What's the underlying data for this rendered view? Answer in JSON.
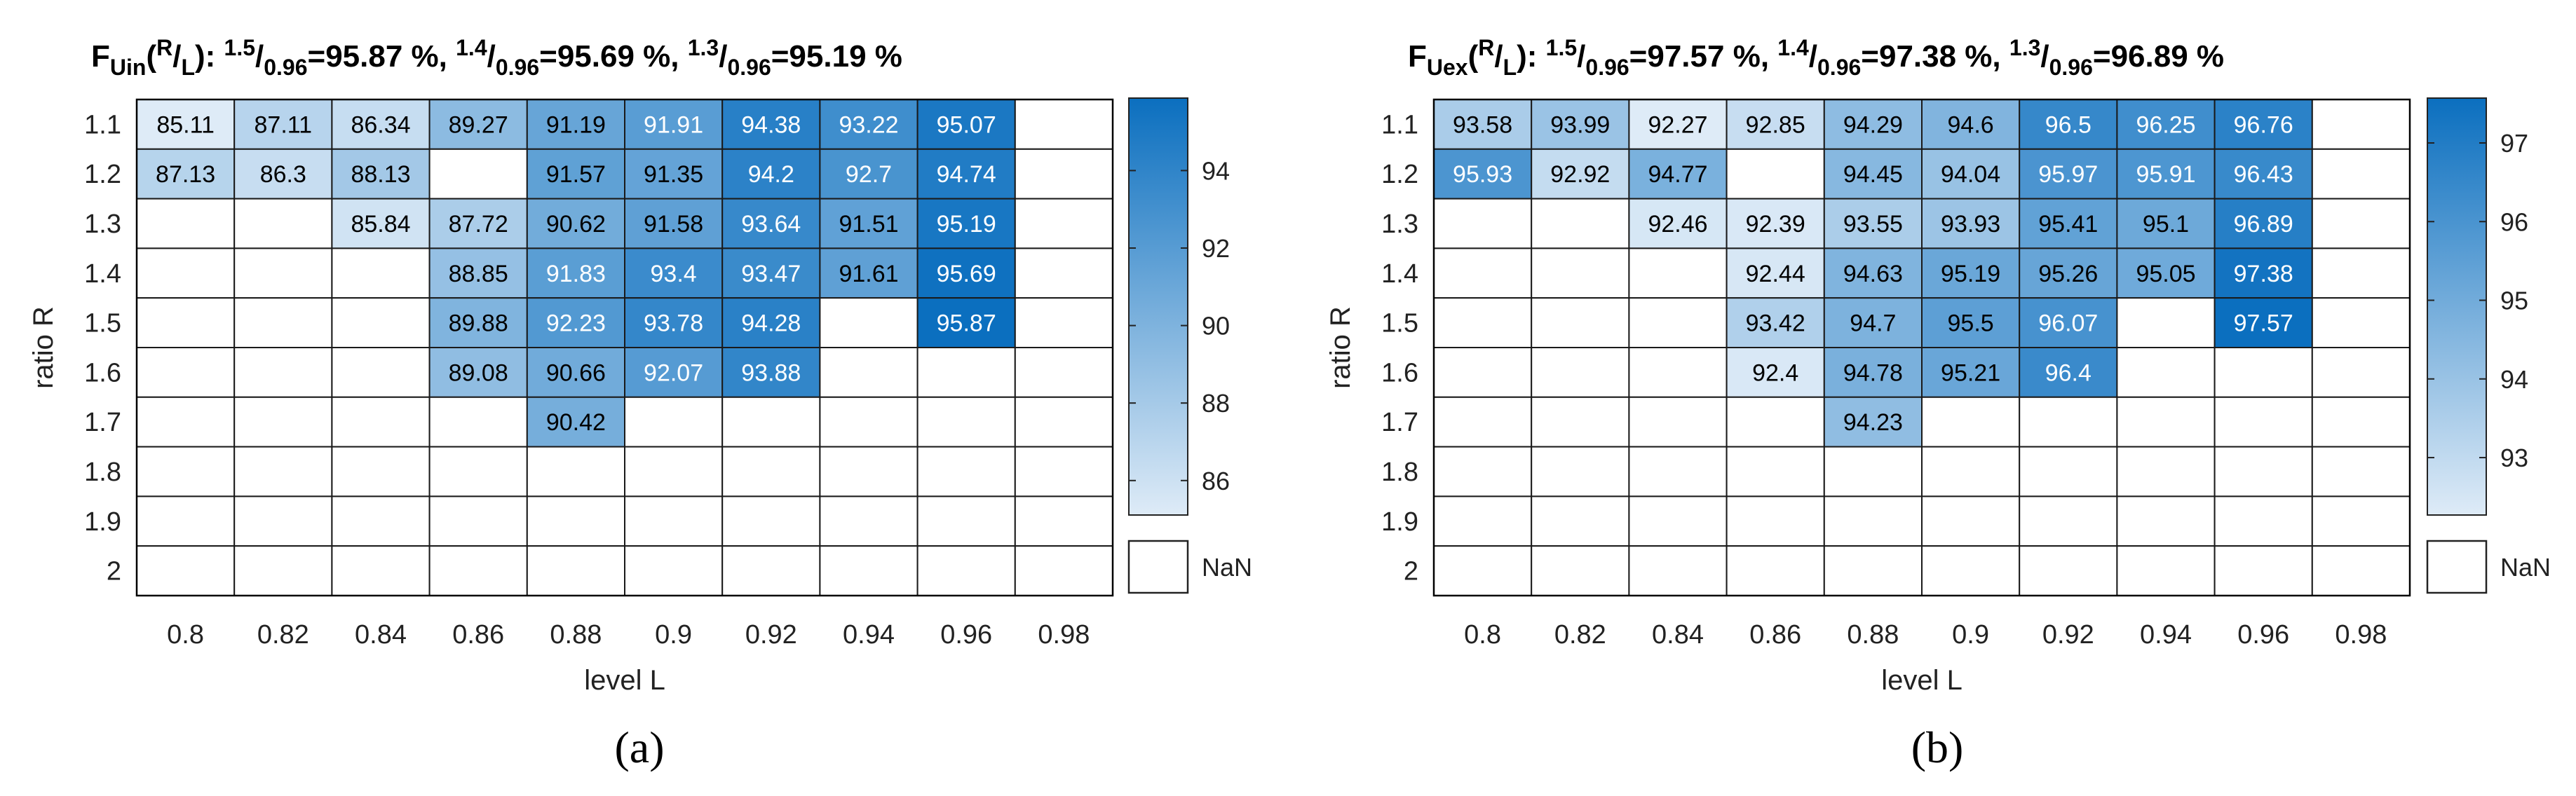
{
  "chart_data": [
    {
      "type": "heatmap",
      "panel_label": "(a)",
      "title": {
        "F": "F",
        "F_sub": "Uin",
        "R": "R",
        "L": "L",
        "sep": "): ",
        "items": [
          {
            "num": "1.5",
            "den": "0.96",
            "value": "=95.87 %, "
          },
          {
            "num": "1.4",
            "den": "0.96",
            "value": "=95.69 %, "
          },
          {
            "num": "1.3",
            "den": "0.96",
            "value": "=95.19 %"
          }
        ]
      },
      "xlabel": "level L",
      "ylabel": "ratio R",
      "x": [
        "0.8",
        "0.82",
        "0.84",
        "0.86",
        "0.88",
        "0.9",
        "0.92",
        "0.94",
        "0.96",
        "0.98"
      ],
      "y": [
        "1.1",
        "1.2",
        "1.3",
        "1.4",
        "1.5",
        "1.6",
        "1.7",
        "1.8",
        "1.9",
        "2"
      ],
      "values": [
        [
          85.11,
          87.11,
          86.34,
          89.27,
          91.19,
          91.91,
          94.38,
          93.22,
          95.07,
          null
        ],
        [
          87.13,
          86.3,
          88.13,
          null,
          91.57,
          91.35,
          94.2,
          92.7,
          94.74,
          null
        ],
        [
          null,
          null,
          85.84,
          87.72,
          90.62,
          91.58,
          93.64,
          91.51,
          95.19,
          null
        ],
        [
          null,
          null,
          null,
          88.85,
          91.83,
          93.4,
          93.47,
          91.61,
          95.69,
          null
        ],
        [
          null,
          null,
          null,
          89.88,
          92.23,
          93.78,
          94.28,
          null,
          95.87,
          null
        ],
        [
          null,
          null,
          null,
          89.08,
          90.66,
          92.07,
          93.88,
          null,
          null,
          null
        ],
        [
          null,
          null,
          null,
          null,
          90.42,
          null,
          null,
          null,
          null,
          null
        ],
        [
          null,
          null,
          null,
          null,
          null,
          null,
          null,
          null,
          null,
          null
        ],
        [
          null,
          null,
          null,
          null,
          null,
          null,
          null,
          null,
          null,
          null
        ],
        [
          null,
          null,
          null,
          null,
          null,
          null,
          null,
          null,
          null,
          null
        ]
      ],
      "color_range": [
        85.11,
        95.87
      ],
      "colorbar_ticks": [
        86,
        88,
        90,
        92,
        94
      ],
      "colorbar_tick_labels": [
        "86",
        "88",
        "90",
        "92",
        "94"
      ],
      "missing_label": "NaN",
      "color_low": "#deebf7",
      "color_high": "#0b6fbf"
    },
    {
      "type": "heatmap",
      "panel_label": "(b)",
      "title": {
        "F": "F",
        "F_sub": "Uex",
        "R": "R",
        "L": "L",
        "sep": "): ",
        "items": [
          {
            "num": "1.5",
            "den": "0.96",
            "value": "=97.57 %, "
          },
          {
            "num": "1.4",
            "den": "0.96",
            "value": "=97.38 %, "
          },
          {
            "num": "1.3",
            "den": "0.96",
            "value": "=96.89 %"
          }
        ]
      },
      "xlabel": "level L",
      "ylabel": "ratio R",
      "x": [
        "0.8",
        "0.82",
        "0.84",
        "0.86",
        "0.88",
        "0.9",
        "0.92",
        "0.94",
        "0.96",
        "0.98"
      ],
      "y": [
        "1.1",
        "1.2",
        "1.3",
        "1.4",
        "1.5",
        "1.6",
        "1.7",
        "1.8",
        "1.9",
        "2"
      ],
      "values": [
        [
          93.58,
          93.99,
          92.27,
          92.85,
          94.29,
          94.6,
          96.5,
          96.25,
          96.76,
          null
        ],
        [
          95.93,
          92.92,
          94.77,
          null,
          94.45,
          94.04,
          95.97,
          95.91,
          96.43,
          null
        ],
        [
          null,
          null,
          92.46,
          92.39,
          93.55,
          93.93,
          95.41,
          95.1,
          96.89,
          null
        ],
        [
          null,
          null,
          null,
          92.44,
          94.63,
          95.19,
          95.26,
          95.05,
          97.38,
          null
        ],
        [
          null,
          null,
          null,
          93.42,
          94.7,
          95.5,
          96.07,
          null,
          97.57,
          null
        ],
        [
          null,
          null,
          null,
          92.4,
          94.78,
          95.21,
          96.4,
          null,
          null,
          null
        ],
        [
          null,
          null,
          null,
          null,
          94.23,
          null,
          null,
          null,
          null,
          null
        ],
        [
          null,
          null,
          null,
          null,
          null,
          null,
          null,
          null,
          null,
          null
        ],
        [
          null,
          null,
          null,
          null,
          null,
          null,
          null,
          null,
          null,
          null
        ],
        [
          null,
          null,
          null,
          null,
          null,
          null,
          null,
          null,
          null,
          null
        ]
      ],
      "color_range": [
        92.27,
        97.57
      ],
      "colorbar_ticks": [
        93,
        94,
        95,
        96,
        97
      ],
      "colorbar_tick_labels": [
        "93",
        "94",
        "95",
        "96",
        "97"
      ],
      "missing_label": "NaN",
      "color_low": "#deebf7",
      "color_high": "#0b6fbf"
    }
  ]
}
